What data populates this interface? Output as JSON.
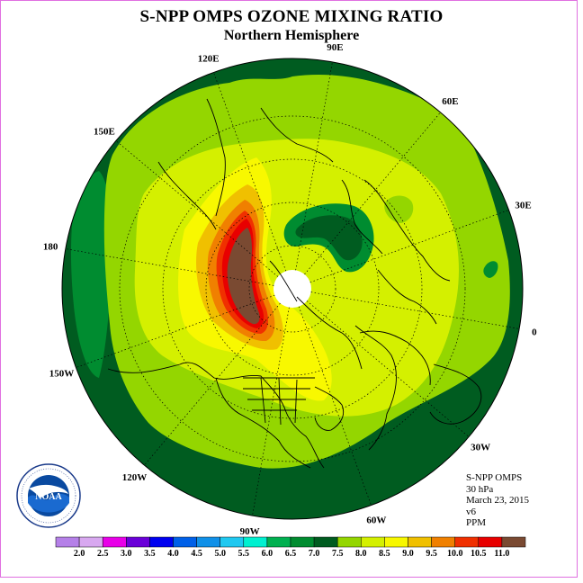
{
  "title": "S-NPP OMPS OZONE MIXING RATIO",
  "subtitle": "Northern Hemisphere",
  "longitude_labels": [
    "90E",
    "60E",
    "30E",
    "0",
    "30W",
    "60W",
    "90W",
    "120W",
    "150W",
    "180",
    "150E",
    "120E"
  ],
  "info": {
    "instrument": "S-NPP OMPS",
    "level": "30 hPa",
    "date": "March 23, 2015",
    "version": "v6",
    "units": "PPM"
  },
  "colorbar": {
    "ticks": [
      "2.0",
      "2.5",
      "3.0",
      "3.5",
      "4.0",
      "4.5",
      "5.0",
      "5.5",
      "6.0",
      "6.5",
      "7.0",
      "7.5",
      "8.0",
      "8.5",
      "9.0",
      "9.5",
      "10.0",
      "10.5",
      "11.0"
    ],
    "colors": [
      "#b580e8",
      "#d8a8f0",
      "#e800e8",
      "#6a00d8",
      "#0000f0",
      "#0060e8",
      "#1090e8",
      "#20c8f0",
      "#00f0d0",
      "#00b050",
      "#008c30",
      "#005c20",
      "#94d600",
      "#d4f000",
      "#f8f800",
      "#f0c000",
      "#f08000",
      "#f03000",
      "#e80000",
      "#7a4a32"
    ]
  },
  "colors": {
    "dark_green": "#005c20",
    "green": "#008c30",
    "yellow_green": "#94d600",
    "lime": "#d4f000",
    "yellow": "#f8f800",
    "gold": "#f0c000",
    "orange": "#f08000",
    "red_orange": "#f03000",
    "red": "#e80000",
    "brown": "#7a4a32",
    "frame_border": "#e070e0"
  },
  "logo_text": "NOAA"
}
